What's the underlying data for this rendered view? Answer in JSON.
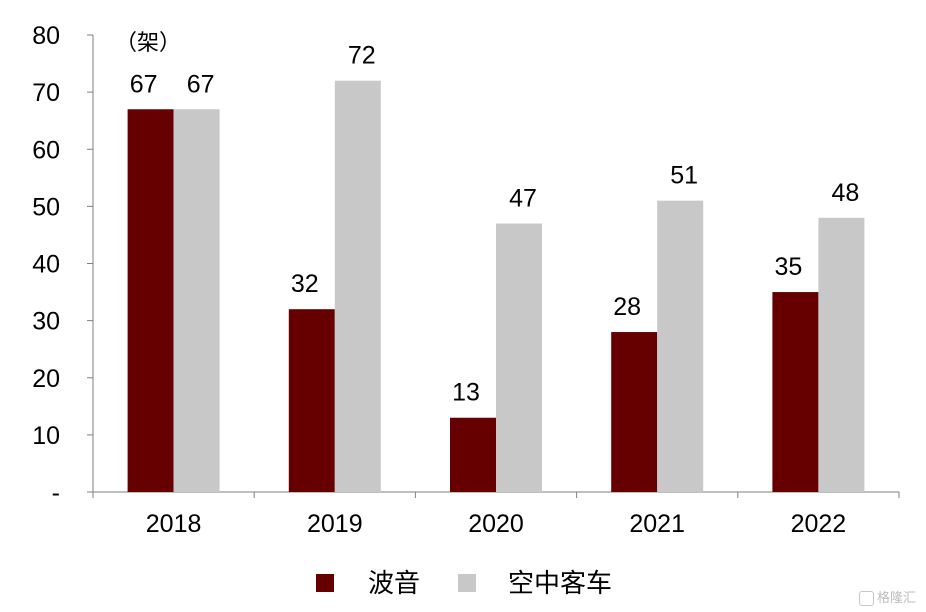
{
  "chart_data": {
    "type": "bar",
    "unit_label": "（架）",
    "categories": [
      "2018",
      "2019",
      "2020",
      "2021",
      "2022"
    ],
    "series": [
      {
        "name": "波音",
        "values": [
          67,
          32,
          13,
          28,
          35
        ],
        "color": "#660000"
      },
      {
        "name": "空中客车",
        "values": [
          67,
          72,
          47,
          51,
          48
        ],
        "color": "#c8c8c8"
      }
    ],
    "data_labels": [
      [
        "67",
        "32",
        "13",
        "28",
        "35"
      ],
      [
        "67",
        "72",
        "47",
        "51",
        "48"
      ]
    ],
    "ylim": [
      0,
      80
    ],
    "yticks": [
      "-",
      "10",
      "20",
      "30",
      "40",
      "50",
      "60",
      "70",
      "80"
    ],
    "grid": false,
    "legend_position": "bottom-center"
  },
  "watermark": {
    "text": "格隆汇"
  }
}
